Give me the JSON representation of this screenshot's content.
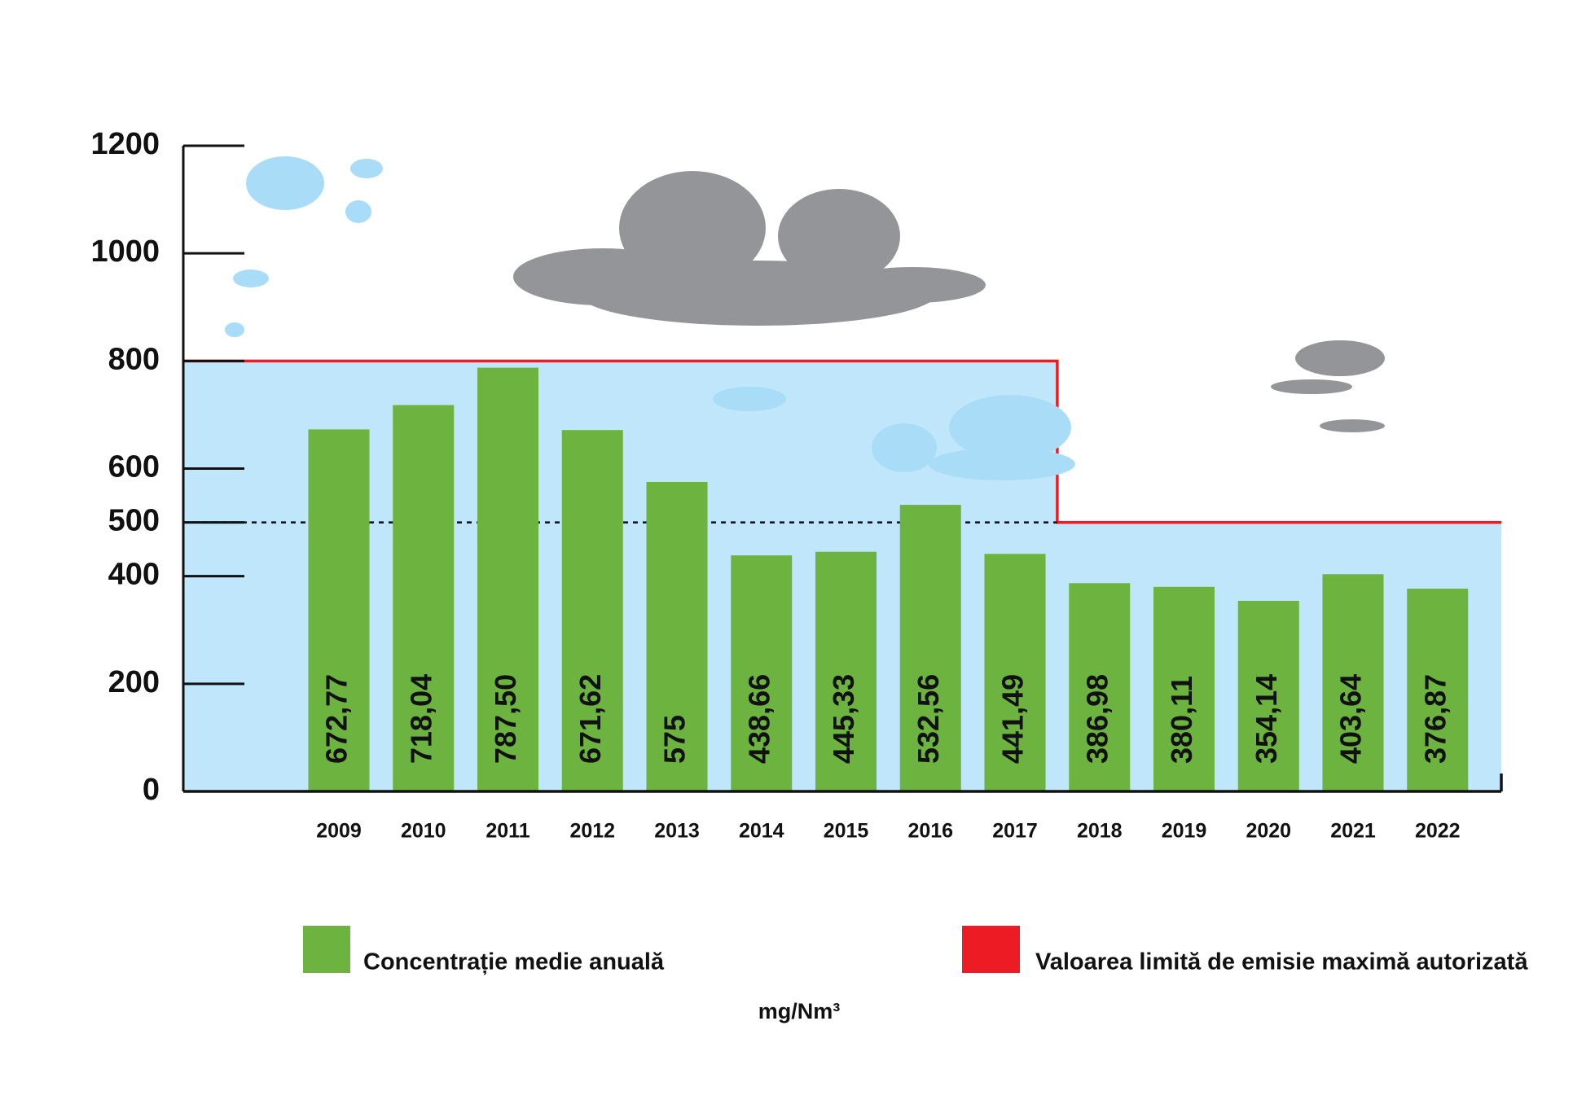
{
  "chart_data": {
    "type": "bar",
    "categories": [
      "2009",
      "2010",
      "2011",
      "2012",
      "2013",
      "2014",
      "2015",
      "2016",
      "2017",
      "2018",
      "2019",
      "2020",
      "2021",
      "2022"
    ],
    "series": [
      {
        "name": "Concentrație medie anuală",
        "color": "#6db33f",
        "values": [
          672.77,
          718.04,
          787.5,
          671.62,
          575,
          438.66,
          445.33,
          532.56,
          441.49,
          386.98,
          380.11,
          354.14,
          403.64,
          376.87
        ],
        "value_labels": [
          "672,77",
          "718,04",
          "787,50",
          "671,62",
          "575",
          "438,66",
          "445,33",
          "532,56",
          "441,49",
          "386,98",
          "380,11",
          "354,14",
          "403,64",
          "376,87"
        ]
      },
      {
        "name": "Valoarea limită de emisie maximă autorizată",
        "color": "#ed1c24",
        "values": [
          800,
          800,
          800,
          800,
          800,
          800,
          800,
          800,
          800,
          500,
          500,
          500,
          500,
          500
        ]
      }
    ],
    "unit": "mg/Nm³",
    "ylim": [
      0,
      1200
    ],
    "yticks": [
      0,
      200,
      400,
      500,
      600,
      800,
      1000,
      1200
    ]
  }
}
